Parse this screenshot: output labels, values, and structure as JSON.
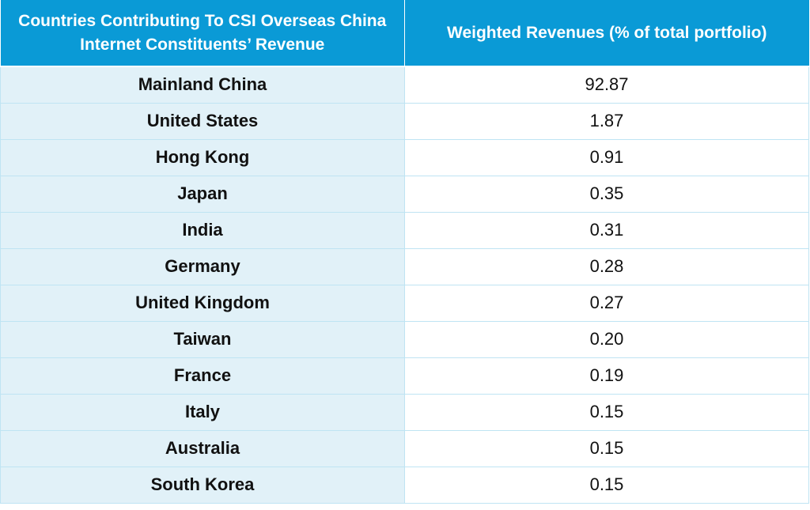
{
  "chart_data": {
    "type": "table",
    "columns": [
      "Countries Contributing To CSI Overseas China Internet Constituents’ Revenue",
      "Weighted Revenues (% of total portfolio)"
    ],
    "rows": [
      {
        "country": "Mainland China",
        "value": "92.87"
      },
      {
        "country": "United States",
        "value": "1.87"
      },
      {
        "country": "Hong Kong",
        "value": "0.91"
      },
      {
        "country": "Japan",
        "value": "0.35"
      },
      {
        "country": "India",
        "value": "0.31"
      },
      {
        "country": "Germany",
        "value": "0.28"
      },
      {
        "country": "United Kingdom",
        "value": "0.27"
      },
      {
        "country": "Taiwan",
        "value": "0.20"
      },
      {
        "country": "France",
        "value": "0.19"
      },
      {
        "country": "Italy",
        "value": "0.15"
      },
      {
        "country": "Australia",
        "value": "0.15"
      },
      {
        "country": "South Korea",
        "value": "0.15"
      }
    ]
  },
  "colors": {
    "header_bg": "#0a9ad6",
    "country_bg": "#e1f1f8",
    "grid_line": "#bfe4f3"
  }
}
